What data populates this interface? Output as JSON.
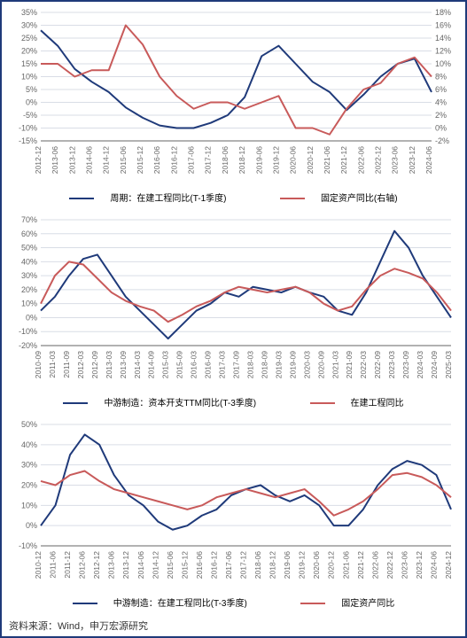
{
  "colors": {
    "border": "#1f3a7a",
    "grid": "#d9dde6",
    "axis": "#666666",
    "text": "#333333",
    "series_navy": "#1f3a7a",
    "series_red": "#c85a5a",
    "background": "#ffffff"
  },
  "typography": {
    "axis_fontsize": 9,
    "legend_fontsize": 10,
    "footer_fontsize": 11,
    "font_family": "Microsoft YaHei, Arial, sans-serif"
  },
  "footer": "资料来源：Wind，申万宏源研究",
  "chart1": {
    "type": "line-dual-axis",
    "x_labels": [
      "2012-12",
      "2013-06",
      "2013-12",
      "2014-06",
      "2014-12",
      "2015-06",
      "2015-12",
      "2016-06",
      "2016-12",
      "2017-06",
      "2017-12",
      "2018-06",
      "2018-12",
      "2019-06",
      "2019-12",
      "2020-06",
      "2020-12",
      "2021-06",
      "2021-12",
      "2022-06",
      "2022-12",
      "2023-06",
      "2023-12",
      "2024-06"
    ],
    "left_axis": {
      "min": -15,
      "max": 35,
      "step": 5,
      "format": "%"
    },
    "right_axis": {
      "min": -2,
      "max": 18,
      "step": 2,
      "format": "%"
    },
    "series": [
      {
        "name": "周期：在建工程同比(T-1季度)",
        "axis": "left",
        "color": "#1f3a7a",
        "width": 2,
        "values": [
          28,
          22,
          13,
          8,
          4,
          -2,
          -6,
          -9,
          -10,
          -10,
          -8,
          -5,
          2,
          18,
          22,
          15,
          8,
          4,
          -3,
          3,
          10,
          15,
          17,
          4
        ]
      },
      {
        "name": "固定资产同比(右轴)",
        "axis": "right",
        "color": "#c85a5a",
        "width": 2,
        "values": [
          10,
          10,
          8,
          9,
          9,
          16,
          13,
          8,
          5,
          3,
          4,
          4,
          3,
          4,
          5,
          0,
          0,
          -1,
          3,
          6,
          7,
          10,
          11,
          8
        ]
      }
    ],
    "legend": [
      "周期：在建工程同比(T-1季度)",
      "固定资产同比(右轴)"
    ]
  },
  "chart2": {
    "type": "line",
    "x_labels": [
      "2010-09",
      "2011-03",
      "2011-09",
      "2012-03",
      "2012-09",
      "2013-03",
      "2013-09",
      "2014-03",
      "2014-09",
      "2015-03",
      "2015-09",
      "2016-03",
      "2016-09",
      "2017-03",
      "2017-09",
      "2018-03",
      "2018-09",
      "2019-03",
      "2019-09",
      "2020-03",
      "2020-09",
      "2021-03",
      "2021-09",
      "2022-03",
      "2022-09",
      "2023-03",
      "2023-09",
      "2024-03",
      "2024-09",
      "2025-03"
    ],
    "left_axis": {
      "min": -20,
      "max": 70,
      "step": 10,
      "format": "%"
    },
    "series": [
      {
        "name": "中游制造：资本开支TTM同比(T-3季度)",
        "color": "#1f3a7a",
        "width": 2,
        "values": [
          5,
          15,
          30,
          42,
          45,
          30,
          15,
          5,
          -5,
          -15,
          -5,
          5,
          10,
          18,
          15,
          22,
          20,
          18,
          22,
          18,
          15,
          5,
          2,
          18,
          40,
          62,
          50,
          30,
          15,
          0
        ]
      },
      {
        "name": "在建工程同比",
        "color": "#c85a5a",
        "width": 2,
        "values": [
          10,
          30,
          40,
          38,
          28,
          18,
          12,
          8,
          5,
          -3,
          2,
          8,
          12,
          18,
          22,
          20,
          18,
          20,
          22,
          18,
          10,
          5,
          8,
          20,
          30,
          35,
          32,
          28,
          18,
          5
        ]
      }
    ],
    "legend": [
      "中游制造：资本开支TTM同比(T-3季度)",
      "在建工程同比"
    ]
  },
  "chart3": {
    "type": "line",
    "x_labels": [
      "2010-12",
      "2011-06",
      "2011-12",
      "2012-06",
      "2012-12",
      "2013-06",
      "2013-12",
      "2014-06",
      "2014-12",
      "2015-06",
      "2015-12",
      "2016-06",
      "2016-12",
      "2017-06",
      "2017-12",
      "2018-06",
      "2018-12",
      "2019-06",
      "2019-12",
      "2020-06",
      "2020-12",
      "2021-06",
      "2021-12",
      "2022-06",
      "2022-12",
      "2023-06",
      "2023-12",
      "2024-06",
      "2024-12"
    ],
    "left_axis": {
      "min": -10,
      "max": 50,
      "step": 10,
      "format": "%"
    },
    "series": [
      {
        "name": "中游制造：在建工程同比(T-3季度)",
        "color": "#1f3a7a",
        "width": 2,
        "values": [
          0,
          10,
          35,
          45,
          40,
          25,
          15,
          10,
          2,
          -2,
          0,
          5,
          8,
          15,
          18,
          20,
          15,
          12,
          15,
          10,
          0,
          0,
          8,
          20,
          28,
          32,
          30,
          25,
          8
        ]
      },
      {
        "name": "固定资产同比",
        "color": "#c85a5a",
        "width": 2,
        "values": [
          22,
          20,
          25,
          27,
          22,
          18,
          16,
          14,
          12,
          10,
          8,
          10,
          14,
          16,
          18,
          16,
          14,
          16,
          18,
          12,
          5,
          8,
          12,
          18,
          25,
          26,
          24,
          20,
          14
        ]
      }
    ],
    "legend": [
      "中游制造：在建工程同比(T-3季度)",
      "固定资产同比"
    ]
  }
}
